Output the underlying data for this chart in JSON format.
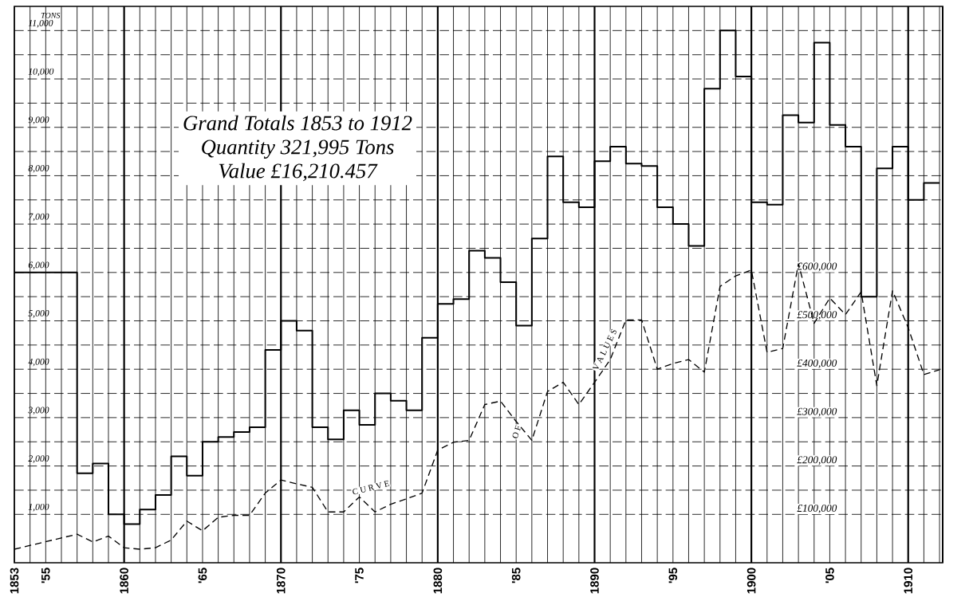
{
  "chart_data": {
    "type": "step",
    "ylabel": "TONS",
    "annotations": [
      "Grand Totals 1853 to 1912",
      "Quantity 321,995 Tons",
      "Value £16,210.457",
      "C U R V E",
      "O F",
      "V A L U E S"
    ],
    "xlim": [
      1853,
      1912.2
    ],
    "xticks": [
      1853,
      {
        "value": 1855,
        "label": "'55"
      },
      1860,
      {
        "value": 1865,
        "label": "'65"
      },
      1870,
      {
        "value": 1875,
        "label": "'75"
      },
      1880,
      {
        "value": 1885,
        "label": "'85"
      },
      1890,
      {
        "value": 1895,
        "label": "'95"
      },
      1900,
      {
        "value": 1905,
        "label": "'05"
      },
      1910
    ],
    "ylim": [
      0,
      11500
    ],
    "yticks": [
      {
        "value": 1000,
        "label": "1,000"
      },
      {
        "value": 2000,
        "label": "2,000"
      },
      {
        "value": 3000,
        "label": "3,000"
      },
      {
        "value": 4000,
        "label": "4,000"
      },
      {
        "value": 5000,
        "label": "5,000"
      },
      {
        "value": 6000,
        "label": "6,000"
      },
      {
        "value": 7000,
        "label": "7,000"
      },
      {
        "value": 8000,
        "label": "8,000"
      },
      {
        "value": 9000,
        "label": "9,000"
      },
      {
        "value": 10000,
        "label": "10,000"
      },
      {
        "value": 11000,
        "label": "11,000"
      }
    ],
    "y2lim": [
      0,
      1150000
    ],
    "y2ticks": [
      {
        "value": 100000,
        "label": "£100,000"
      },
      {
        "value": 200000,
        "label": "£200,000"
      },
      {
        "value": 300000,
        "label": "£300,000"
      },
      {
        "value": 400000,
        "label": "£400,000"
      },
      {
        "value": 500000,
        "label": "£500,000"
      },
      {
        "value": 600000,
        "label": "£600,000"
      }
    ],
    "grid": true,
    "series": [
      {
        "color": "#000000",
        "x": [
          1853,
          1857,
          1858,
          1859,
          1860,
          1861,
          1862,
          1863,
          1864,
          1865,
          1866,
          1867,
          1868,
          1869,
          1870,
          1871,
          1872,
          1873,
          1874,
          1875,
          1876,
          1877,
          1878,
          1879,
          1880,
          1881,
          1882,
          1883,
          1884,
          1885,
          1886,
          1887,
          1888,
          1889,
          1890,
          1891,
          1892,
          1893,
          1894,
          1895,
          1896,
          1897,
          1898,
          1899,
          1900,
          1901,
          1902,
          1903,
          1904,
          1905,
          1906,
          1907,
          1908,
          1909,
          1910,
          1911,
          1912
        ],
        "values": [
          6000,
          1850,
          2050,
          1000,
          800,
          1100,
          1400,
          2200,
          1800,
          2500,
          2600,
          2700,
          2800,
          4400,
          5000,
          4800,
          2800,
          2550,
          3150,
          2850,
          3500,
          3350,
          3150,
          4650,
          5350,
          5450,
          6450,
          6300,
          5800,
          4900,
          6700,
          8400,
          7450,
          7350,
          8300,
          8600,
          8250,
          8200,
          7350,
          7000,
          6550,
          9800,
          11000,
          10050,
          7450,
          7400,
          9250,
          9100,
          10750,
          9050,
          8600,
          5500,
          8150,
          8600,
          7500,
          7850,
          7850
        ]
      },
      {
        "type": "line",
        "axis": "y2",
        "color": "#000000",
        "line_style": "dashed",
        "x": [
          1853,
          1857,
          1858,
          1859,
          1860,
          1861,
          1862,
          1863,
          1864,
          1865,
          1866,
          1867,
          1868,
          1869,
          1870,
          1871,
          1872,
          1873,
          1874,
          1875,
          1876,
          1877,
          1878,
          1879,
          1880,
          1881,
          1882,
          1883,
          1884,
          1885,
          1886,
          1887,
          1888,
          1889,
          1890,
          1891,
          1892,
          1893,
          1894,
          1895,
          1896,
          1897,
          1898,
          1899,
          1900,
          1901,
          1902,
          1903,
          1904,
          1905,
          1906,
          1907,
          1908,
          1909,
          1910,
          1911,
          1912
        ],
        "values": [
          28000,
          59000,
          43000,
          55000,
          31000,
          28000,
          31000,
          47000,
          86000,
          66000,
          94000,
          98000,
          98000,
          144000,
          171000,
          163000,
          156000,
          105000,
          105000,
          136000,
          105000,
          121000,
          132000,
          144000,
          233000,
          249000,
          253000,
          327000,
          334000,
          292000,
          253000,
          354000,
          373000,
          327000,
          373000,
          420000,
          502000,
          502000,
          400000,
          412000,
          420000,
          394000,
          571000,
          593000,
          605000,
          435000,
          443000,
          618000,
          495000,
          547000,
          513000,
          560000,
          366000,
          562000,
          486000,
          389000,
          399000
        ]
      }
    ]
  }
}
